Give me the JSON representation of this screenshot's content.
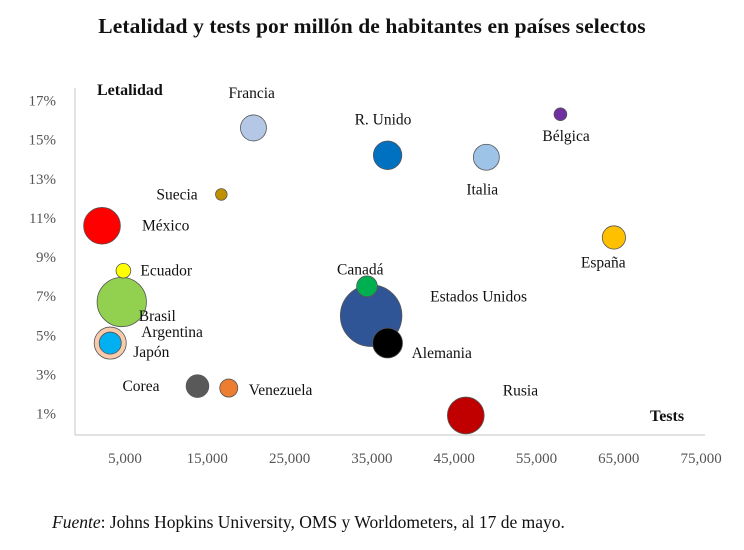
{
  "chart_data": {
    "type": "scatter",
    "title": "Letalidad y tests por millón de habitantes en países selectos",
    "xlabel": "Tests",
    "ylabel": "Letalidad",
    "xlim": [
      0,
      75000
    ],
    "ylim": [
      0,
      0.18
    ],
    "x_ticks": [
      "5,000",
      "15,000",
      "25,000",
      "35,000",
      "45,000",
      "55,000",
      "65,000",
      "75,000"
    ],
    "y_ticks": [
      "1%",
      "3%",
      "5%",
      "7%",
      "9%",
      "11%",
      "13%",
      "15%",
      "17%"
    ],
    "bubbles": true,
    "points": [
      {
        "name": "Francia",
        "x": 21700,
        "y": 0.156,
        "size": 2.5,
        "color": "#b4c7e7"
      },
      {
        "name": "R. Unido",
        "x": 38000,
        "y": 0.142,
        "size": 3.0,
        "color": "#0070c0"
      },
      {
        "name": "Bélgica",
        "x": 59000,
        "y": 0.163,
        "size": 0.6,
        "color": "#7030a0"
      },
      {
        "name": "Italia",
        "x": 50000,
        "y": 0.141,
        "size": 2.5,
        "color": "#9dc3e6"
      },
      {
        "name": "Suecia",
        "x": 17800,
        "y": 0.122,
        "size": 0.5,
        "color": "#bf9000"
      },
      {
        "name": "México",
        "x": 3300,
        "y": 0.106,
        "size": 5.0,
        "color": "#ff0000"
      },
      {
        "name": "España",
        "x": 65500,
        "y": 0.1,
        "size": 2.0,
        "color": "#ffc000"
      },
      {
        "name": "Ecuador",
        "x": 5900,
        "y": 0.083,
        "size": 0.8,
        "color": "#ffff00"
      },
      {
        "name": "Canadá",
        "x": 35500,
        "y": 0.075,
        "size": 1.6,
        "color": "#00b050"
      },
      {
        "name": "Brasil",
        "x": 5700,
        "y": 0.067,
        "size": 9.0,
        "color": "#92d050"
      },
      {
        "name": "Estados Unidos",
        "x": 36000,
        "y": 0.06,
        "size": 14.0,
        "color": "#2f5597"
      },
      {
        "name": "Argentina",
        "x": 4300,
        "y": 0.046,
        "size": 3.8,
        "color": "#f8cbad"
      },
      {
        "name": "Japón",
        "x": 4300,
        "y": 0.046,
        "size": 1.8,
        "color": "#00b0f0"
      },
      {
        "name": "Alemania",
        "x": 38000,
        "y": 0.046,
        "size": 3.3,
        "color": "#000000"
      },
      {
        "name": "Corea",
        "x": 14900,
        "y": 0.024,
        "size": 1.9,
        "color": "#595959"
      },
      {
        "name": "Venezuela",
        "x": 18700,
        "y": 0.023,
        "size": 1.2,
        "color": "#ed7d31"
      },
      {
        "name": "Rusia",
        "x": 47500,
        "y": 0.009,
        "size": 5.0,
        "color": "#c00000"
      }
    ]
  },
  "source": {
    "label": "Fuente",
    "text": ": Johns Hopkins University, OMS y Worldometers, al 17 de mayo."
  }
}
